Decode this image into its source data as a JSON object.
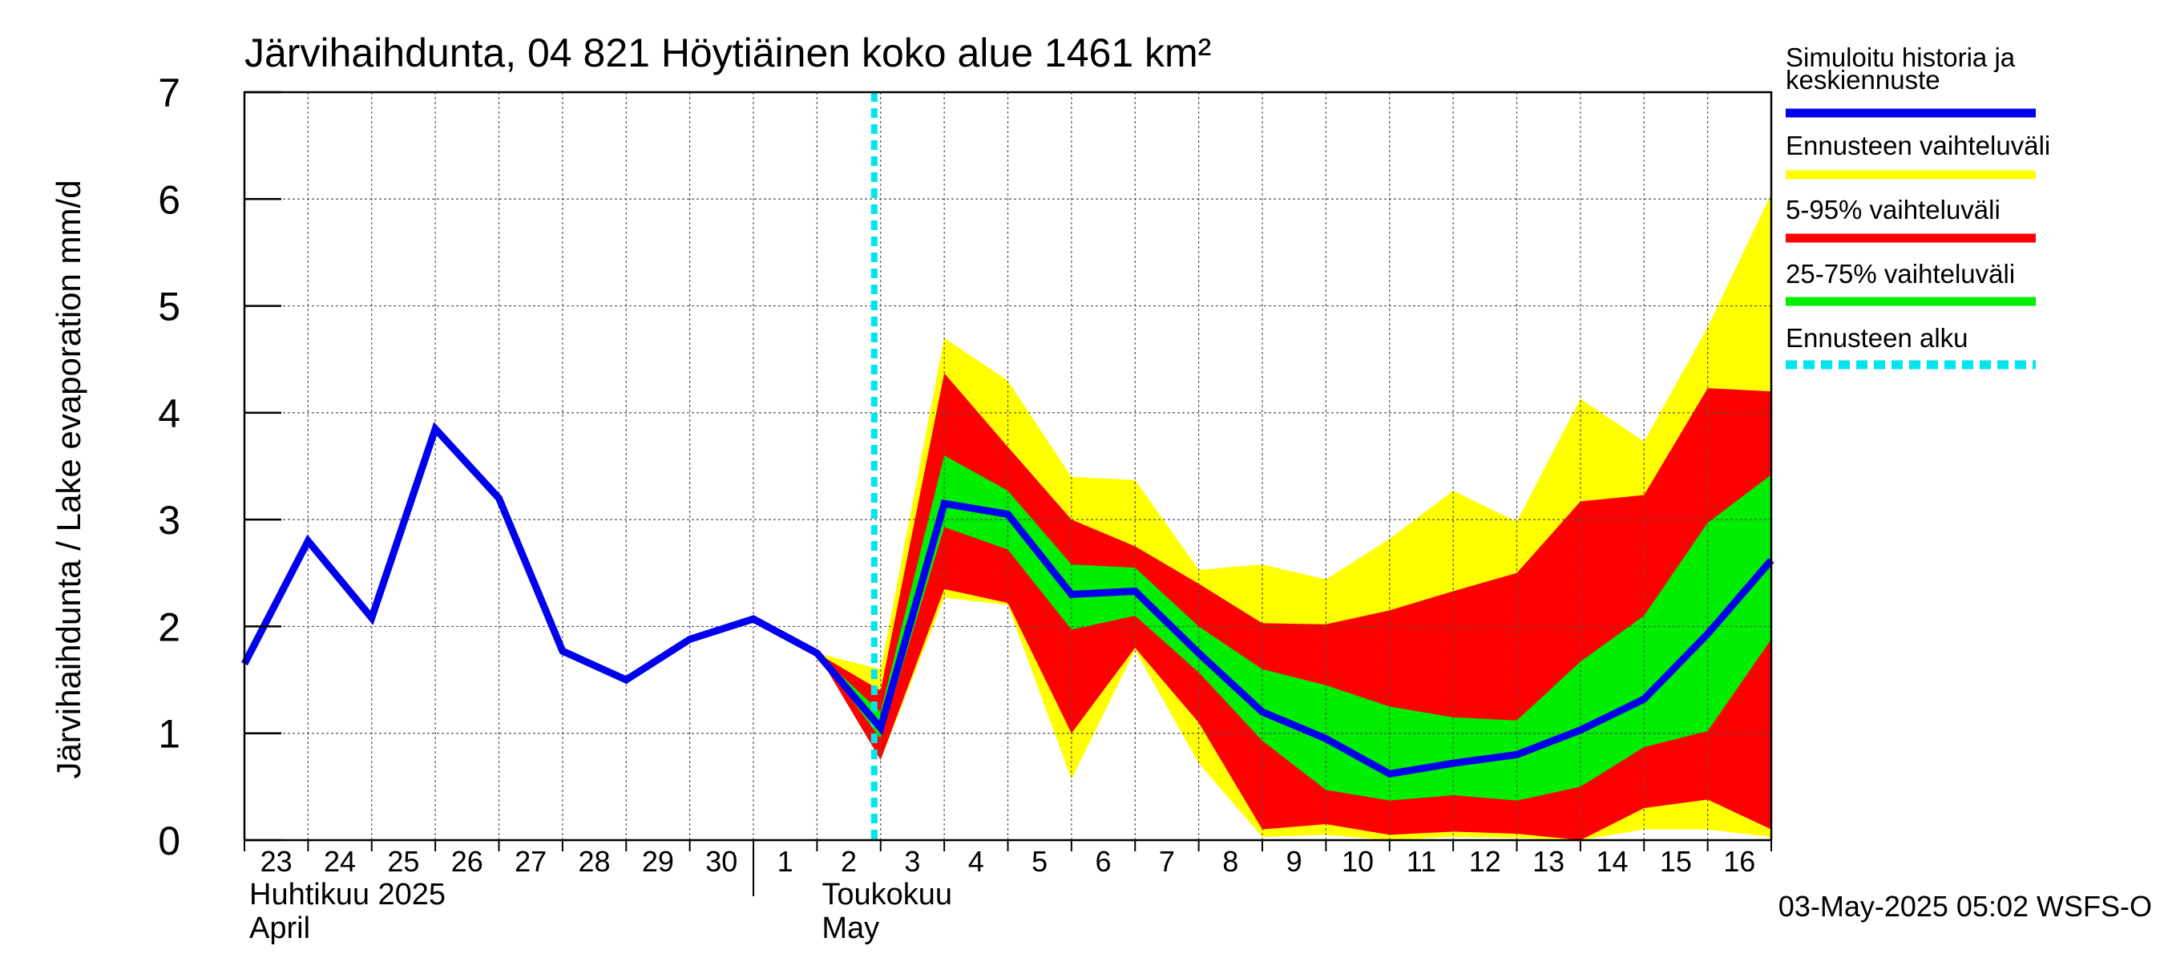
{
  "chart_data": {
    "type": "area",
    "title": "Järvihaihdunta, 04 821 Höytiäinen koko alue 1461 km²",
    "ylabel": "Järvihaihdunta / Lake evaporation   mm/d",
    "xlabel": "",
    "ylim": [
      0,
      7
    ],
    "yticks": [
      "0",
      "1",
      "2",
      "3",
      "4",
      "5",
      "6",
      "7"
    ],
    "x_tick_labels": [
      "23",
      "24",
      "25",
      "26",
      "27",
      "28",
      "29",
      "30",
      "1",
      "2",
      "3",
      "4",
      "5",
      "6",
      "7",
      "8",
      "9",
      "10",
      "11",
      "12",
      "13",
      "14",
      "15",
      "16"
    ],
    "month_labels": [
      {
        "fi": "Huhtikuu  2025",
        "en": "April"
      },
      {
        "fi": "Toukokuu",
        "en": "May"
      }
    ],
    "grid": true,
    "legend_position": "right",
    "forecast_start_label": "Ennusteen alku",
    "forecast_start_day_index": 10,
    "series": [
      {
        "name": "Simuloitu historia ja keskiennuste",
        "color": "#0000ee",
        "x": [
          0,
          1,
          2,
          3,
          4,
          5,
          6,
          7,
          8,
          9,
          10,
          11,
          12,
          13,
          14,
          15,
          16,
          17,
          18,
          19,
          20,
          21,
          22,
          23,
          24
        ],
        "values": [
          1.65,
          2.8,
          2.08,
          3.85,
          3.2,
          1.77,
          1.5,
          1.88,
          2.07,
          1.75,
          1.05,
          3.15,
          3.05,
          2.3,
          2.33,
          1.75,
          1.2,
          0.95,
          0.62,
          0.72,
          0.8,
          1.03,
          1.32,
          1.93,
          2.62
        ]
      }
    ],
    "bands": [
      {
        "name": "Ennusteen vaihteluväli",
        "color": "#ffff00",
        "x": [
          9,
          10,
          11,
          12,
          13,
          14,
          15,
          16,
          17,
          18,
          19,
          20,
          21,
          22,
          23,
          24
        ],
        "low": [
          1.75,
          0.75,
          2.27,
          2.2,
          0.57,
          1.78,
          0.72,
          0.03,
          0.05,
          0.0,
          0.03,
          0.02,
          0.0,
          0.1,
          0.1,
          0.03
        ],
        "high": [
          1.75,
          1.6,
          4.7,
          4.3,
          3.4,
          3.37,
          2.53,
          2.58,
          2.44,
          2.82,
          3.27,
          2.98,
          4.13,
          3.73,
          4.8,
          6.05
        ]
      },
      {
        "name": "5-95% vaihteluväli",
        "color": "#ff0000",
        "x": [
          9,
          10,
          11,
          12,
          13,
          14,
          15,
          16,
          17,
          18,
          19,
          20,
          21,
          22,
          23,
          24
        ],
        "low": [
          1.75,
          0.75,
          2.35,
          2.22,
          1.0,
          1.8,
          1.1,
          0.1,
          0.15,
          0.05,
          0.08,
          0.06,
          0.0,
          0.3,
          0.38,
          0.1
        ],
        "high": [
          1.75,
          1.4,
          4.37,
          3.68,
          3.0,
          2.75,
          2.4,
          2.03,
          2.02,
          2.15,
          2.33,
          2.5,
          3.17,
          3.23,
          4.23,
          4.2
        ]
      },
      {
        "name": "25-75% vaihteluväli",
        "color": "#00ee00",
        "x": [
          9,
          10,
          11,
          12,
          13,
          14,
          15,
          16,
          17,
          18,
          19,
          20,
          21,
          22,
          23,
          24
        ],
        "low": [
          1.75,
          0.95,
          2.93,
          2.72,
          1.97,
          2.1,
          1.57,
          0.93,
          0.47,
          0.37,
          0.42,
          0.37,
          0.5,
          0.87,
          1.02,
          1.88
        ],
        "high": [
          1.75,
          1.2,
          3.6,
          3.27,
          2.58,
          2.55,
          2.0,
          1.6,
          1.45,
          1.25,
          1.15,
          1.12,
          1.67,
          2.1,
          2.97,
          3.42
        ]
      }
    ]
  },
  "footer": {
    "timestamp": "03-May-2025 05:02 WSFS-O"
  }
}
